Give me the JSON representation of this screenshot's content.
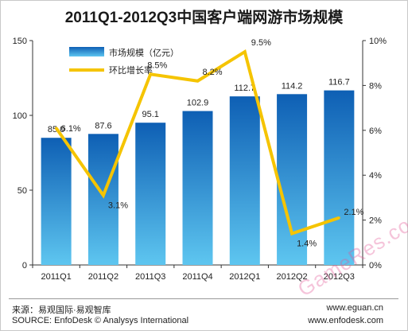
{
  "chart_data": {
    "type": "bar",
    "title": "2011Q1-2012Q3中国客户端网游市场规模",
    "categories": [
      "2011Q1",
      "2011Q2",
      "2011Q3",
      "2011Q4",
      "2012Q1",
      "2012Q2",
      "2012Q3"
    ],
    "series": [
      {
        "name": "市场规模（亿元）",
        "type": "bar",
        "axis": "left",
        "values": [
          85.0,
          87.6,
          95.1,
          102.9,
          112.7,
          114.2,
          116.7
        ],
        "labels": [
          "85.0",
          "87.6",
          "95.1",
          "102.9",
          "112.7",
          "114.2",
          "116.7"
        ],
        "color": "#1a6fc4"
      },
      {
        "name": "环比增长率",
        "type": "line",
        "axis": "right",
        "values": [
          6.1,
          3.1,
          8.5,
          8.2,
          9.5,
          1.4,
          2.1
        ],
        "labels": [
          "6.1%",
          "3.1%",
          "8.5%",
          "8.2%",
          "9.5%",
          "1.4%",
          "2.1%"
        ],
        "color": "#f5c400"
      }
    ],
    "y_left": {
      "min": 0,
      "max": 150,
      "ticks": [
        0,
        50,
        100,
        150
      ],
      "tick_labels": [
        "0",
        "50",
        "100",
        "150"
      ]
    },
    "y_right": {
      "min": 0,
      "max": 10,
      "ticks": [
        0,
        2,
        4,
        6,
        8,
        10
      ],
      "tick_labels": [
        "0%",
        "2%",
        "4%",
        "6%",
        "8%",
        "10%"
      ]
    },
    "grid": false,
    "legend_position": "top-left"
  },
  "footer": {
    "source_cn": "来源：易观国际·易观智库",
    "source_en": "SOURCE: EnfoDesk © Analysys International",
    "site_1": "www.eguan.cn",
    "site_2": "www.enfodesk.com"
  },
  "watermark": "GameRes.com",
  "colors": {
    "bar_top": "#0e5fb4",
    "bar_bottom": "#5ec6f0",
    "line": "#f5c400",
    "axis": "#333333"
  }
}
